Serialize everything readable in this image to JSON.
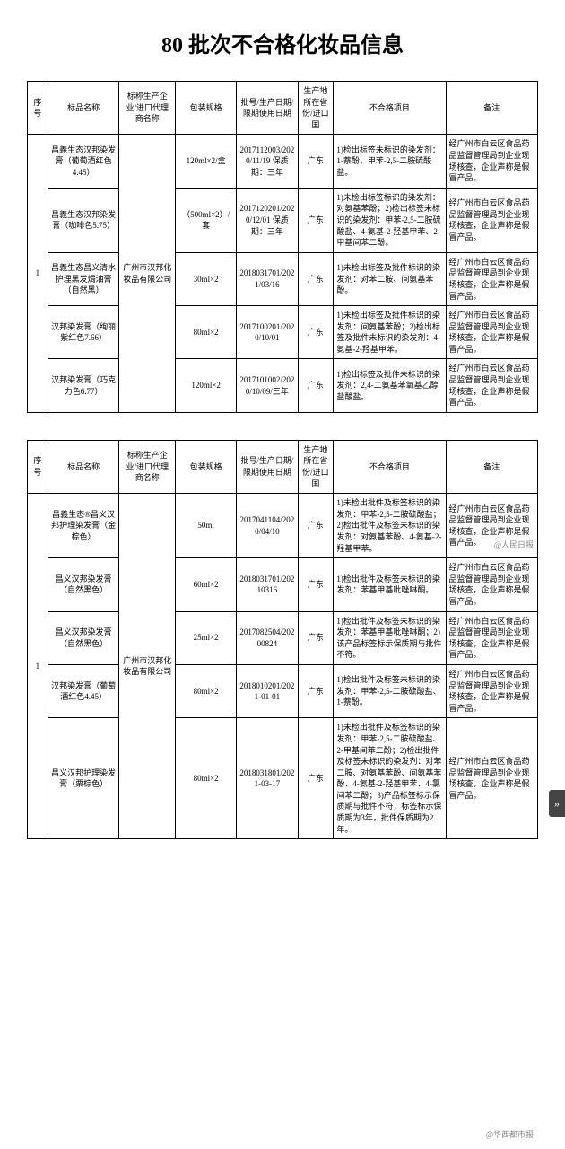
{
  "page": {
    "title": "80 批次不合格化妆品信息"
  },
  "headers": {
    "seq": "序号",
    "name": "标品名称",
    "mfr": "标称生产企业/进口代理商名称",
    "spec": "包装规格",
    "date": "批号/生产日期/限期使用日期",
    "loc": "生产地所在省份/进口国",
    "issue": "不合格项目",
    "note": "备注"
  },
  "table1": {
    "seq": "1",
    "mfr": "广州市汉邦化妆品有限公司",
    "rows": [
      {
        "name": "昌義生态汉邦染发膏（葡萄酒红色4.45）",
        "spec": "120ml×2/盒",
        "date": "2017112003/2020/11/19 保质期：三年",
        "loc": "广东",
        "issue": "1)检出标签未标识的染发剂：1-萘酚、甲苯-2,5-二胺硫酸盐。",
        "note": "经广州市白云区食品药品监督管理局到企业现场核查，企业声称是假冒产品。"
      },
      {
        "name": "昌義生态汉邦染发膏（咖啡色5.75）",
        "spec": "（500ml×2）/套",
        "date": "2017120201/2020/12/01 保质期：三年",
        "loc": "广东",
        "issue": "1)未检出标签标识的染发剂：对氨基苯酚；2)检出标签未标识的染发剂：甲苯-2,5-二胺硫酸盐、4-氨基-2-羟基甲苯、2-甲基间苯二酚。",
        "note": "经广州市白云区食品药品监督管理局到企业现场核查，企业声称是假冒产品。"
      },
      {
        "name": "昌義生态昌义清水护理黑发焗油膏（自然黑）",
        "spec": "30ml×2",
        "date": "2018031701/2021/03/16",
        "loc": "广东",
        "issue": "1)未检出标签及批件标识的染发剂：对苯二胺、间氨基苯酚。",
        "note": "经广州市白云区食品药品监督管理局到企业现场核查，企业声称是假冒产品。"
      },
      {
        "name": "汉邦染发膏（绚丽紫红色7.66）",
        "spec": "80ml×2",
        "date": "2017100201/2020/10/01",
        "loc": "广东",
        "issue": "1)未检出标签及批件标识的染发剂：间氨基苯酚；2)检出标签及批件未标识的染发剂：4-氨基-2-羟基甲苯。",
        "note": "经广州市白云区食品药品监督管理局到企业现场核查，企业声称是假冒产品。"
      },
      {
        "name": "汉邦染发膏（巧克力色6.77）",
        "spec": "120ml×2",
        "date": "2017101002/2020/10/09/三年",
        "loc": "广东",
        "issue": "1)检出标签及批件未标识的染发剂：2,4-二氨基苯氧基乙醇盐酸盐。",
        "note": "经广州市白云区食品药品监督管理局到企业现场核查，企业声称是假冒产品。"
      }
    ]
  },
  "table2": {
    "seq": "1",
    "mfr": "广州市汉邦化妆品有限公司",
    "rows": [
      {
        "name": "昌義生态®昌义汉邦护理染发膏（金棕色）",
        "spec": "50ml",
        "date": "2017041104/2020/04/10",
        "loc": "广东",
        "issue": "1)未检出批件及标签标识的染发剂：甲苯-2,5-二胺硫酸盐；2)检出批件及标签未标识的染发剂：对氨基苯酚、4-氨基-2-羟基甲苯。",
        "note": "经广州市白云区食品药品监督管理局到企业现场核查，企业声称是假冒产品。"
      },
      {
        "name": "昌义汉邦染发膏（自然黑色）",
        "spec": "60ml×2",
        "date": "2018031701/20210316",
        "loc": "广东",
        "issue": "1)检出批件及标签未标识的染发剂：苯基甲基吡唑啉酮。",
        "note": "经广州市白云区食品药品监督管理局到企业现场核查，企业声称是假冒产品。"
      },
      {
        "name": "昌义汉邦染发膏（自然黑色）",
        "spec": "25ml×2",
        "date": "2017082504/20200824",
        "loc": "广东",
        "issue": "1)检出批件及标签未标识的染发剂：苯基甲基吡唑啉酮；2)该产品标签标示保质期与批件不符。",
        "note": "经广州市白云区食品药品监督管理局到企业现场核查，企业声称是假冒产品。"
      },
      {
        "name": "汉邦染发膏（葡萄酒红色4.45）",
        "spec": "80ml×2",
        "date": "2018010201/2021-01-01",
        "loc": "广东",
        "issue": "1)检出批件及标签未标识的染发剂：甲苯-2,5-二胺硫酸盐、1-萘酚。",
        "note": "经广州市白云区食品药品监督管理局到企业现场核查，企业声称是假冒产品。"
      },
      {
        "name": "昌义汉邦护理染发膏（栗棕色）",
        "spec": "80ml×2",
        "date": "2018031801/2021-03-17",
        "loc": "广东",
        "issue": "1)未检出批件及标签标识的染发剂：甲苯-2,5-二胺硫酸盐、2-甲基间苯二酚；2)检出批件及标签未标识的染发剂：对苯二胺、对氨基苯酚、间氨基苯酚、4-氨基-2-羟基甲苯、4-氯间苯二酚；3)产品标签标示保质期与批件不符，标签标示保质期为3年，批件保质期为2年。",
        "note": "经广州市白云区食品药品监督管理局到企业现场核查，企业声称是假冒产品。"
      }
    ]
  },
  "watermarks": {
    "source1": "@人民日报",
    "source2": "@华西都市报"
  }
}
